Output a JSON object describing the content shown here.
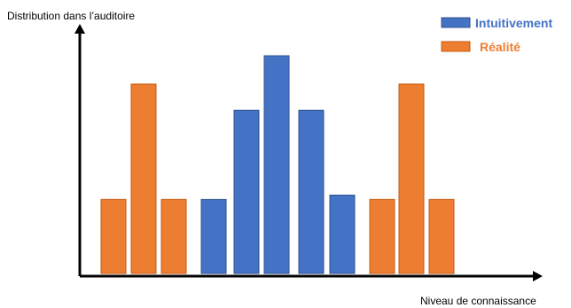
{
  "chart_data": {
    "type": "bar",
    "ylabel": "Distribution dans l’auditoire",
    "xlabel": "Niveau de connaissance",
    "legend_position": "top-right",
    "axis_ticks": "none",
    "grid": false,
    "y_units": "relative (tallest bar = 100)",
    "ylim": [
      0,
      100
    ],
    "series": [
      {
        "name": "Intuitivement",
        "color": "#4472C4",
        "values": [
          34,
          75,
          100,
          75,
          36
        ]
      },
      {
        "name": "Réalité",
        "color": "#ED7D31",
        "values": [
          34,
          87,
          34,
          34,
          87,
          34
        ]
      }
    ],
    "bar_order": [
      {
        "series": 1,
        "index": 0
      },
      {
        "series": 1,
        "index": 1
      },
      {
        "series": 1,
        "index": 2
      },
      {
        "series": 0,
        "index": 0
      },
      {
        "series": 0,
        "index": 1
      },
      {
        "series": 0,
        "index": 2
      },
      {
        "series": 0,
        "index": 3
      },
      {
        "series": 0,
        "index": 4
      },
      {
        "series": 1,
        "index": 3
      },
      {
        "series": 1,
        "index": 4
      },
      {
        "series": 1,
        "index": 5
      }
    ]
  }
}
